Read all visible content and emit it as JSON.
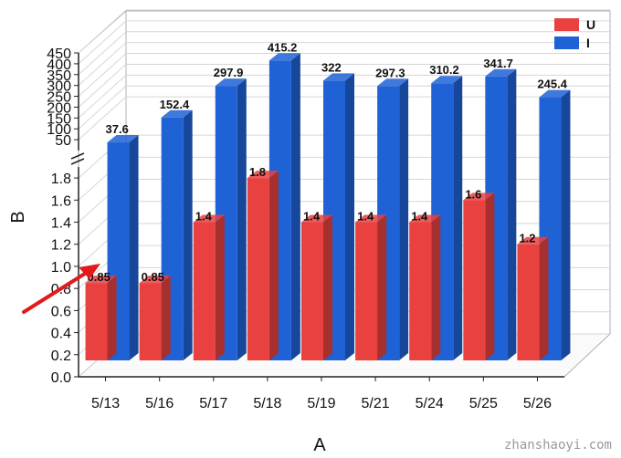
{
  "chart_data": {
    "type": "bar",
    "subtype": "3d-clustered-bar-with-broken-y-axis",
    "categories": [
      "5/13",
      "5/16",
      "5/17",
      "5/18",
      "5/19",
      "5/21",
      "5/24",
      "5/25",
      "5/26"
    ],
    "series": [
      {
        "name": "U",
        "values": [
          0.85,
          0.85,
          1.4,
          1.8,
          1.4,
          1.4,
          1.4,
          1.6,
          1.2
        ],
        "labels": [
          "0.85",
          "0.85",
          "1.4",
          "1.8",
          "1.4",
          "1.4",
          "1.4",
          "1.6",
          "1.2"
        ],
        "color": "#E8413F"
      },
      {
        "name": "I",
        "values": [
          37.6,
          152.4,
          297.9,
          415.2,
          322,
          297.3,
          310.2,
          341.7,
          245.4
        ],
        "labels": [
          "37.6",
          "152.4",
          "297.9",
          "415.2",
          "322",
          "297.3",
          "310.2",
          "341.7",
          "245.4"
        ],
        "color": "#1F62D6"
      }
    ],
    "xlabel": "A",
    "ylabel": "B",
    "y_lower": {
      "range": [
        0,
        1.9
      ],
      "ticks": [
        "0.0",
        "0.2",
        "0.4",
        "0.6",
        "0.8",
        "1.0",
        "1.2",
        "1.4",
        "1.6",
        "1.8"
      ]
    },
    "y_upper": {
      "range": [
        0,
        450
      ],
      "ticks": [
        "50",
        "100",
        "150",
        "200",
        "250",
        "300",
        "350",
        "400",
        "450"
      ]
    },
    "legend": {
      "position": "top-right"
    },
    "grid": true,
    "annotation": {
      "type": "arrow",
      "color": "#E31A1C",
      "points_to": "5/13 U"
    }
  },
  "watermark": "zhanshaoyi.com"
}
